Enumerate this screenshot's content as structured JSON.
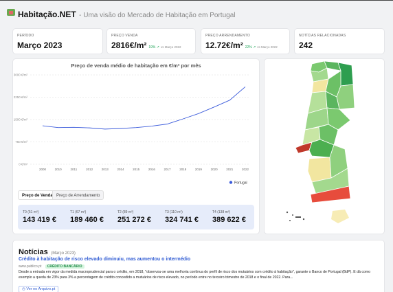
{
  "header": {
    "title": "Habitação.NET",
    "subtitle": "- Uma visão do Mercado de Habitação em Portugal"
  },
  "kpis": [
    {
      "label": "PERÍODO",
      "value": "Março 2023"
    },
    {
      "label": "PREÇO VENDA",
      "value": "2816€/m²",
      "change": "19% ↗",
      "compare": "vs Março 2022"
    },
    {
      "label": "PREÇO ARRENDAMENTO",
      "value": "12.72€/m²",
      "change": "22% ↗",
      "compare": "vs Março 2022"
    },
    {
      "label": "NOTÍCIAS RELACIONADAS",
      "value": "242"
    }
  ],
  "chart_data": {
    "type": "line",
    "title": "Preço de venda médio de habitação em €/m² por mês",
    "categories": [
      "2000",
      "2010",
      "2011",
      "2012",
      "2013",
      "2014",
      "2015",
      "2016",
      "2017",
      "2018",
      "2019",
      "2020",
      "2021",
      "2022"
    ],
    "series": [
      {
        "name": "Portugal",
        "color": "#3b5bdb",
        "values": [
          1290,
          1230,
          1240,
          1220,
          1180,
          1200,
          1230,
          1280,
          1350,
          1520,
          1700,
          1920,
          2150,
          2600
        ]
      }
    ],
    "ylim": [
      0,
      3000
    ],
    "yticks": [
      {
        "value": 0,
        "label": "0 €/m²"
      },
      {
        "value": 750,
        "label": "750 €/m²"
      },
      {
        "value": 1500,
        "label": "1500 €/m²"
      },
      {
        "value": 2250,
        "label": "2250 €/m²"
      },
      {
        "value": 3000,
        "label": "3000 €/m²"
      }
    ],
    "grid": true
  },
  "tabs": [
    "Preço de Venda",
    "Preço de Arrendamento"
  ],
  "typologies": [
    {
      "label": "T0 (51 m²)",
      "value": "143 419 €"
    },
    {
      "label": "T1 (67 m²)",
      "value": "189 460 €"
    },
    {
      "label": "T2 (89 m²)",
      "value": "251 272 €"
    },
    {
      "label": "T3 (110 m²)",
      "value": "324 741 €"
    },
    {
      "label": "T4 (138 m²)",
      "value": "389 622 €"
    }
  ],
  "news": {
    "title": "Notícias",
    "period": "(Março 2023)",
    "headline": "Crédito à habitação de risco elevado diminuiu, mas aumentou o intermédio",
    "source": "www.publico.pt",
    "tag": "CRÉDITO BANCÁRIO",
    "text": "Desde a entrada em vigor da medida macroprudencial para o crédito, em 2018, \"observou-se uma melhoria contínua do perfil de risco dos mutuários com crédito à habitação\", garante o Banco de Portugal (BdP). E dá como exemplo a queda de 23% para 3% a percentagem de crédito concedido a mutuários de risco elevado, no período entre no terceiro trimestre de 2018 e o final de 2022. Para...",
    "button": "Ver no Arquivo.pt"
  }
}
